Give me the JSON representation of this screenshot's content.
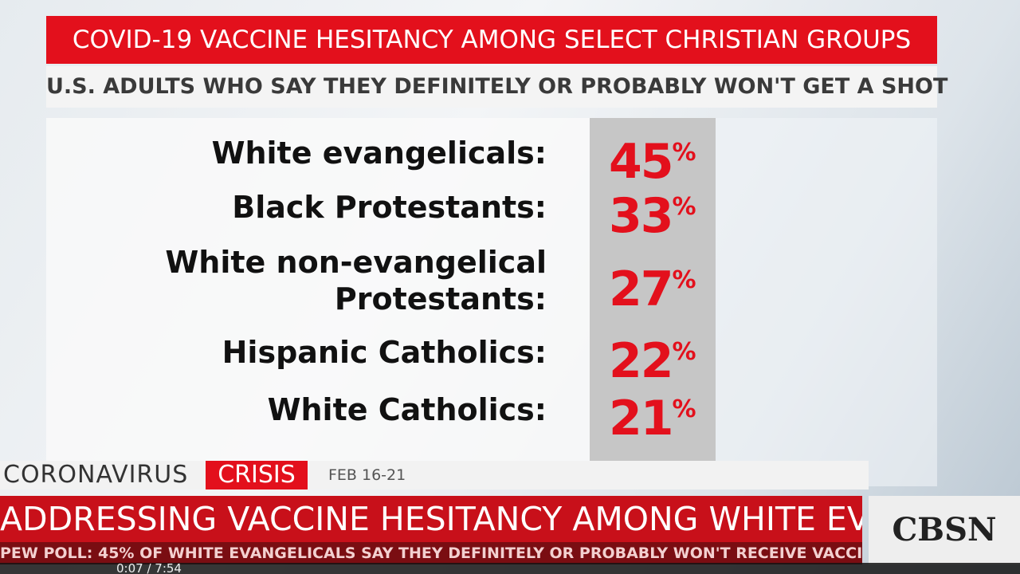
{
  "graphic": {
    "title": "COVID-19 VACCINE HESITANCY AMONG SELECT CHRISTIAN GROUPS",
    "subtitle": "U.S. ADULTS WHO SAY THEY DEFINITELY OR PROBABLY WON'T GET A SHOT",
    "rows": [
      {
        "label": [
          "White evangelicals:"
        ],
        "value": 45,
        "unit": "%"
      },
      {
        "label": [
          "Black Protestants:"
        ],
        "value": 33,
        "unit": "%"
      },
      {
        "label": [
          "White non-evangelical",
          "Protestants:"
        ],
        "value": 27,
        "unit": "%"
      },
      {
        "label": [
          "Hispanic Catholics:"
        ],
        "value": 22,
        "unit": "%"
      },
      {
        "label": [
          "White Catholics:"
        ],
        "value": 21,
        "unit": "%"
      }
    ]
  },
  "lower_third": {
    "show": "CORONAVIRUS",
    "show_tag": "CRISIS",
    "date": "FEB 16-21",
    "headline": "ADDRESSING VACCINE HESITANCY AMONG WHITE EVANGELICALS",
    "ticker": "PEW POLL: 45% OF WHITE EVANGELICALS SAY THEY DEFINITELY OR PROBABLY WON'T RECEIVE VACCINE",
    "logo": "CBSN"
  },
  "player": {
    "time": "0:07 / 7:54"
  }
}
